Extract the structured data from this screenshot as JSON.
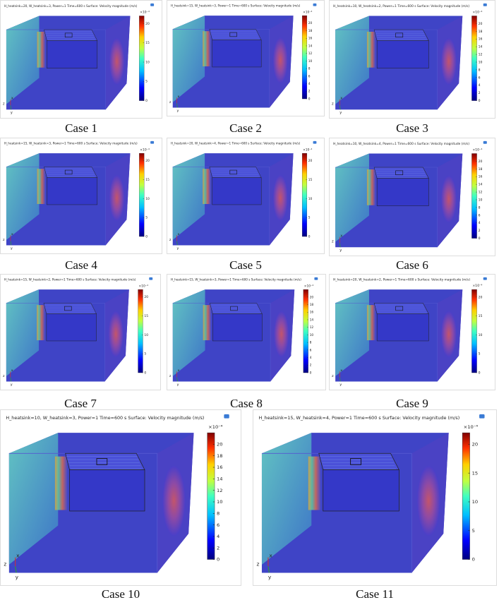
{
  "axes_labels": [
    "z",
    "x",
    "y"
  ],
  "colorbar_exponent": "×10⁻⁴",
  "clim": [
    0,
    22
  ],
  "panels": [
    {
      "title": "H_heatsink=20, W_heatsink=3, Power=1 Time=600 s  Surface: Velocity magnitude (m/s)",
      "ticks": [
        0,
        5,
        10,
        15,
        20
      ],
      "case": "Case 1"
    },
    {
      "title": "H_heatsink=15, W_heatsink=3, Power=1 Time=600 s  Surface: Velocity magnitude (m/s)",
      "ticks": [
        0,
        2,
        4,
        6,
        8,
        10,
        12,
        14,
        16,
        18,
        20
      ],
      "case": "Case 2"
    },
    {
      "title": "H_heatsink=10, W_heatsink=2, Power=1 Time=600 s  Surface: Velocity magnitude (m/s)",
      "ticks": [
        0,
        2,
        4,
        6,
        8,
        10,
        12,
        14,
        16,
        18,
        20
      ],
      "case": "Case 3"
    },
    {
      "title": "H_heatsink=15, W_heatsink=3, Power=1 Time=600 s  Surface: Velocity magnitude (m/s)",
      "ticks": [
        0,
        5,
        10,
        15,
        20
      ],
      "case": "Case 4"
    },
    {
      "title": "H_heatsink=20, W_heatsink=4, Power=1 Time=600 s  Surface: Velocity magnitude (m/s)",
      "ticks": [
        0,
        5,
        10,
        15,
        20
      ],
      "case": "Case 5"
    },
    {
      "title": "H_heatsink=10, W_heatsink=4, Power=1 Time=600 s  Surface: Velocity magnitude (m/s)",
      "ticks": [
        0,
        2,
        4,
        6,
        8,
        10,
        12,
        14,
        16,
        18,
        20
      ],
      "case": "Case 6"
    },
    {
      "title": "H_heatsink=15, W_heatsink=2, Power=1 Time=600 s  Surface: Velocity magnitude (m/s)",
      "ticks": [
        0,
        5,
        10,
        15,
        20
      ],
      "case": "Case 7"
    },
    {
      "title": "H_heatsink=15, W_heatsink=3, Power=1 Time=600 s  Surface: Velocity magnitude (m/s)",
      "ticks": [
        0,
        2,
        4,
        6,
        8,
        10,
        12,
        14,
        16,
        18,
        20
      ],
      "case": "Case 8"
    },
    {
      "title": "H_heatsink=20, W_heatsink=2, Power=1 Time=600 s  Surface: Velocity magnitude (m/s)",
      "ticks": [
        0,
        5,
        10,
        15,
        20
      ],
      "case": "Case 9"
    },
    {
      "title": "H_heatsink=10, W_heatsink=3, Power=1 Time=600 s  Surface: Velocity magnitude (m/s)",
      "ticks": [
        0,
        2,
        4,
        6,
        8,
        10,
        12,
        14,
        16,
        18,
        20
      ],
      "case": "Case 10"
    },
    {
      "title": "H_heatsink=15, W_heatsink=4, Power=1 Time=600 s  Surface: Velocity magnitude (m/s)",
      "ticks": [
        0,
        5,
        10,
        15,
        20
      ],
      "case": "Case 11"
    }
  ]
}
